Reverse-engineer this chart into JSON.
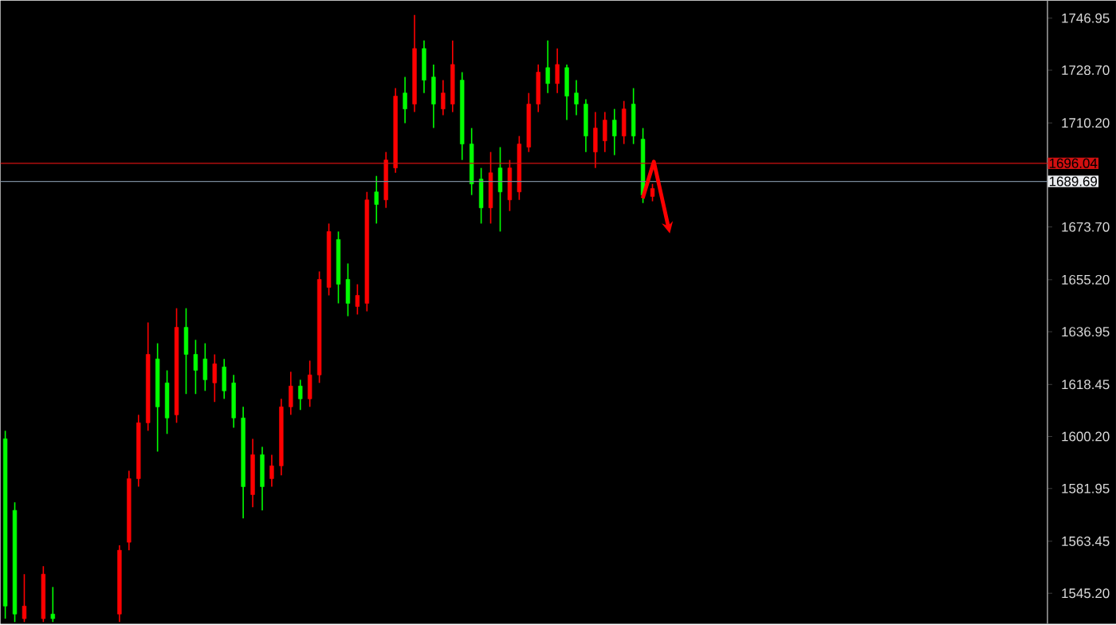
{
  "chart_data": {
    "type": "candlestick",
    "categories": [
      null,
      null,
      null,
      null,
      null,
      null,
      null,
      null,
      null,
      null,
      null,
      null,
      null,
      null,
      null,
      null,
      null,
      null,
      null,
      null,
      null,
      null,
      null,
      null,
      null,
      null,
      null,
      null,
      null,
      null,
      null,
      null,
      null,
      null,
      null,
      null,
      null,
      null,
      null,
      null,
      null,
      null,
      null,
      null,
      null,
      null,
      null,
      null,
      null,
      null,
      null,
      null,
      null,
      null,
      null,
      null,
      null,
      null,
      null,
      null,
      null,
      null,
      null,
      null,
      null,
      null,
      null,
      null,
      null,
      null,
      null,
      null,
      null,
      null,
      null,
      null,
      null,
      null,
      null,
      null,
      null,
      null,
      null,
      null,
      null,
      null,
      null,
      null,
      null,
      null,
      null,
      null,
      null,
      null,
      null,
      null,
      null,
      null,
      null,
      null,
      null,
      null,
      null,
      null,
      null,
      null,
      null,
      null,
      null,
      null
    ],
    "ohlc": [
      [
        1599.4,
        1602.2,
        1536.3,
        1540.7
      ],
      [
        1574.3,
        1577.1,
        1535.1,
        1537.9
      ],
      [
        1536.3,
        1551.9,
        1535.1,
        1540.7
      ],
      null,
      [
        1536.3,
        1554.7,
        1535.1,
        1551.9
      ],
      [
        1537.9,
        1547.4,
        1535.1,
        1536.3
      ],
      null,
      null,
      null,
      null,
      null,
      null,
      [
        1537.9,
        1562.0,
        1535.1,
        1560.3
      ],
      [
        1563.1,
        1588.2,
        1560.3,
        1585.4
      ],
      [
        1585.4,
        1607.8,
        1582.6,
        1605.0
      ],
      [
        1605.0,
        1640.2,
        1602.2,
        1629.0
      ],
      [
        1627.4,
        1632.9,
        1594.9,
        1610.6
      ],
      [
        1619.0,
        1623.4,
        1601.1,
        1606.7
      ],
      [
        1607.8,
        1645.2,
        1605.0,
        1638.5
      ],
      [
        1638.5,
        1645.2,
        1615.1,
        1629.0
      ],
      [
        1629.0,
        1634.1,
        1615.1,
        1623.4
      ],
      [
        1627.4,
        1632.9,
        1616.2,
        1620.1
      ],
      [
        1619.0,
        1629.0,
        1612.3,
        1625.7
      ],
      [
        1624.6,
        1627.4,
        1613.4,
        1616.2
      ],
      [
        1619.0,
        1621.8,
        1603.3,
        1606.7
      ],
      [
        1606.7,
        1610.6,
        1571.5,
        1582.6
      ],
      [
        1579.8,
        1599.4,
        1575.4,
        1593.8
      ],
      [
        1593.8,
        1596.6,
        1574.3,
        1582.6
      ],
      [
        1585.4,
        1593.8,
        1582.6,
        1589.9
      ],
      [
        1589.9,
        1613.4,
        1586.6,
        1610.6
      ],
      [
        1610.6,
        1622.9,
        1607.8,
        1617.9
      ],
      [
        1617.9,
        1620.1,
        1609.5,
        1613.4
      ],
      [
        1613.4,
        1626.8,
        1610.6,
        1621.8
      ],
      [
        1621.8,
        1658.1,
        1619.0,
        1655.3
      ],
      [
        1652.5,
        1674.9,
        1649.7,
        1672.1
      ],
      [
        1669.3,
        1672.1,
        1646.9,
        1653.6
      ],
      [
        1655.3,
        1660.9,
        1642.4,
        1646.9
      ],
      [
        1645.8,
        1653.6,
        1643.0,
        1649.7
      ],
      [
        1646.9,
        1686.0,
        1644.1,
        1683.2
      ],
      [
        1686.0,
        1691.6,
        1674.9,
        1681.6
      ],
      [
        1683.2,
        1700.0,
        1680.4,
        1697.2
      ],
      [
        1694.4,
        1722.4,
        1692.7,
        1719.6
      ],
      [
        1720.7,
        1726.3,
        1710.1,
        1715.1
      ],
      [
        1716.8,
        1748.1,
        1714.0,
        1736.3
      ],
      [
        1736.3,
        1739.1,
        1720.7,
        1725.2
      ],
      [
        1726.3,
        1730.7,
        1708.4,
        1716.8
      ],
      [
        1715.1,
        1725.2,
        1712.9,
        1720.7
      ],
      [
        1716.8,
        1739.1,
        1714.0,
        1730.7
      ],
      [
        1725.2,
        1728.0,
        1697.2,
        1702.8
      ],
      [
        1702.8,
        1708.4,
        1684.9,
        1688.8
      ],
      [
        1690.5,
        1694.4,
        1674.9,
        1680.4
      ],
      [
        1680.4,
        1700.0,
        1674.9,
        1692.7
      ],
      [
        1694.4,
        1701.7,
        1672.1,
        1686.0
      ],
      [
        1683.2,
        1697.2,
        1679.3,
        1694.4
      ],
      [
        1686.0,
        1705.6,
        1683.2,
        1702.8
      ],
      [
        1701.7,
        1720.7,
        1700.0,
        1716.8
      ],
      [
        1716.8,
        1730.7,
        1714.0,
        1728.0
      ],
      [
        1729.6,
        1739.1,
        1720.7,
        1724.0
      ],
      [
        1724.0,
        1736.3,
        1720.7,
        1730.7
      ],
      [
        1729.6,
        1730.7,
        1711.2,
        1719.6
      ],
      [
        1720.7,
        1725.2,
        1712.9,
        1716.8
      ],
      [
        1716.8,
        1718.5,
        1700.0,
        1705.6
      ],
      [
        1700.0,
        1714.0,
        1694.4,
        1708.4
      ],
      [
        1703.9,
        1714.0,
        1700.0,
        1711.2
      ],
      [
        1711.2,
        1715.1,
        1698.9,
        1705.6
      ],
      [
        1705.6,
        1717.9,
        1702.8,
        1715.1
      ],
      [
        1716.8,
        1722.4,
        1702.8,
        1705.6
      ],
      [
        1704.5,
        1708.4,
        1682.1,
        1684.9
      ],
      [
        1684.4,
        1688.8,
        1682.7,
        1687.2
      ],
      null,
      null,
      null,
      null,
      null,
      null,
      null,
      null,
      null,
      null,
      null,
      null,
      null,
      null,
      null,
      null,
      null,
      null,
      null,
      null,
      null,
      null,
      null,
      null,
      null,
      null,
      null,
      null,
      null,
      null,
      null,
      null,
      null,
      null,
      null,
      null,
      null,
      null,
      null,
      null,
      null
    ],
    "colors": [
      "#00ff00",
      "#00ff00",
      "#ff0000",
      null,
      "#ff0000",
      "#00ff00",
      null,
      null,
      null,
      null,
      null,
      null,
      "#ff0000",
      "#ff0000",
      "#ff0000",
      "#ff0000",
      "#00ff00",
      "#00ff00",
      "#ff0000",
      "#00ff00",
      "#00ff00",
      "#00ff00",
      "#ff0000",
      "#00ff00",
      "#00ff00",
      "#00ff00",
      "#ff0000",
      "#00ff00",
      "#ff0000",
      "#ff0000",
      "#ff0000",
      "#00ff00",
      "#ff0000",
      "#ff0000",
      "#ff0000",
      "#00ff00",
      "#00ff00",
      "#ff0000",
      "#ff0000",
      "#00ff00",
      "#ff0000",
      "#ff0000",
      "#00ff00",
      "#ff0000",
      "#00ff00",
      "#00ff00",
      "#ff0000",
      "#ff0000",
      "#00ff00",
      "#00ff00",
      "#00ff00",
      "#ff0000",
      "#00ff00",
      "#ff0000",
      "#ff0000",
      "#ff0000",
      "#ff0000",
      "#00ff00",
      "#ff0000",
      "#00ff00",
      "#00ff00",
      "#00ff00",
      "#ff0000",
      "#ff0000",
      "#00ff00",
      "#ff0000",
      "#00ff00",
      "#00ff00",
      "#ff0000",
      null,
      null,
      null,
      null,
      null,
      null,
      null,
      null,
      null,
      null,
      null,
      null,
      null,
      null,
      null,
      null,
      null,
      null,
      null,
      null,
      null,
      null,
      null,
      null,
      null,
      null,
      null,
      null,
      null,
      null,
      null,
      null,
      null,
      null,
      null,
      null,
      null,
      null,
      null,
      null,
      null
    ],
    "ylim": [
      1534.5,
      1753.1
    ],
    "yticks": [
      1746.95,
      {
        "value": 1728.7,
        "label": "1728.70"
      },
      {
        "value": 1710.2,
        "label": "1710.20"
      },
      {
        "value": 1673.7,
        "label": "1673.70"
      },
      {
        "value": 1655.2,
        "label": "1655.20"
      },
      1636.95,
      1618.45,
      {
        "value": 1600.2,
        "label": "1600.20"
      },
      1581.95,
      1563.45,
      {
        "value": 1545.2,
        "label": "1545.20"
      }
    ],
    "tick_labels": "y",
    "ref_lines": [
      {
        "axis": "y",
        "value": 1696.04,
        "label": "1696.04",
        "color": "#d01010"
      },
      {
        "axis": "y",
        "value": 1689.69,
        "label": "1689.69",
        "color": "#778899"
      }
    ]
  }
}
